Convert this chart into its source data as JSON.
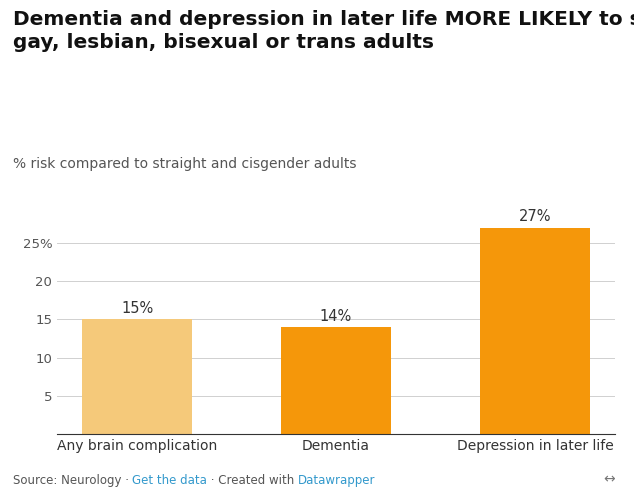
{
  "title": "Dementia and depression in later life MORE LIKELY to strike\ngay, lesbian, bisexual or trans adults",
  "subtitle": "% risk compared to straight and cisgender adults",
  "categories": [
    "Any brain complication",
    "Dementia",
    "Depression in later life"
  ],
  "values": [
    15,
    14,
    27
  ],
  "bar_colors": [
    "#f5c97a",
    "#f5970a",
    "#f5970a"
  ],
  "value_labels": [
    "15%",
    "14%",
    "27%"
  ],
  "ylim": [
    0,
    30
  ],
  "yticks": [
    0,
    5,
    10,
    15,
    20,
    25
  ],
  "ytick_labels": [
    "",
    "5",
    "10",
    "15",
    "20",
    "25%"
  ],
  "background_color": "#ffffff",
  "grid_color": "#d0d0d0",
  "source_text": "Source: Neurology · ",
  "link_text1": "Get the data",
  "mid_text": " · Created with ",
  "link_text2": "Datawrapper",
  "source_color": "#555555",
  "link_color": "#3399cc",
  "title_fontsize": 14.5,
  "subtitle_fontsize": 10,
  "label_fontsize": 10,
  "source_fontsize": 8.5,
  "bar_label_fontsize": 10.5
}
